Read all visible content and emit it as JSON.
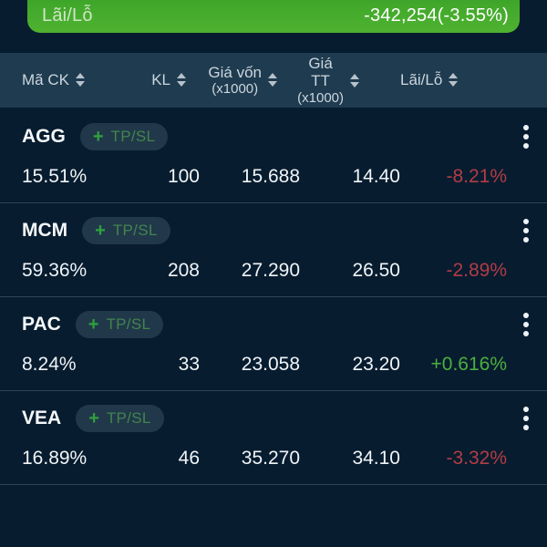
{
  "summary": {
    "label": "Lãi/Lỗ",
    "value": "-342,254(-3.55%)"
  },
  "table": {
    "headers": [
      {
        "label": "Mã CK",
        "sub": ""
      },
      {
        "label": "KL",
        "sub": ""
      },
      {
        "label": "Giá vốn",
        "sub": "(x1000)"
      },
      {
        "label": "Giá TT",
        "sub": "(x1000)"
      },
      {
        "label": "Lãi/Lỗ",
        "sub": ""
      }
    ],
    "add_tpsl": {
      "plus": "+",
      "label": "TP/SL"
    },
    "rows": [
      {
        "ticker": "AGG",
        "pct": "15.51%",
        "kl": "100",
        "gia_von": "15.688",
        "gia_tt": "14.40",
        "lai_lo": "-8.21%",
        "trend": "down"
      },
      {
        "ticker": "MCM",
        "pct": "59.36%",
        "kl": "208",
        "gia_von": "27.290",
        "gia_tt": "26.50",
        "lai_lo": "-2.89%",
        "trend": "down"
      },
      {
        "ticker": "PAC",
        "pct": "8.24%",
        "kl": "33",
        "gia_von": "23.058",
        "gia_tt": "23.20",
        "lai_lo": "+0.616%",
        "trend": "up"
      },
      {
        "ticker": "VEA",
        "pct": "16.89%",
        "kl": "46",
        "gia_von": "35.270",
        "gia_tt": "34.10",
        "lai_lo": "-3.32%",
        "trend": "down"
      }
    ]
  },
  "icons": {
    "sort": "sort-arrows",
    "menu": "vertical-dots",
    "plus": "plus"
  },
  "colors": {
    "gain": "#4caf3f",
    "loss": "#b23c46",
    "banner_top": "#2f9724",
    "banner_bottom": "#4fb230",
    "header_bg": "#1f3b50",
    "page_bg": "#071c2f"
  }
}
